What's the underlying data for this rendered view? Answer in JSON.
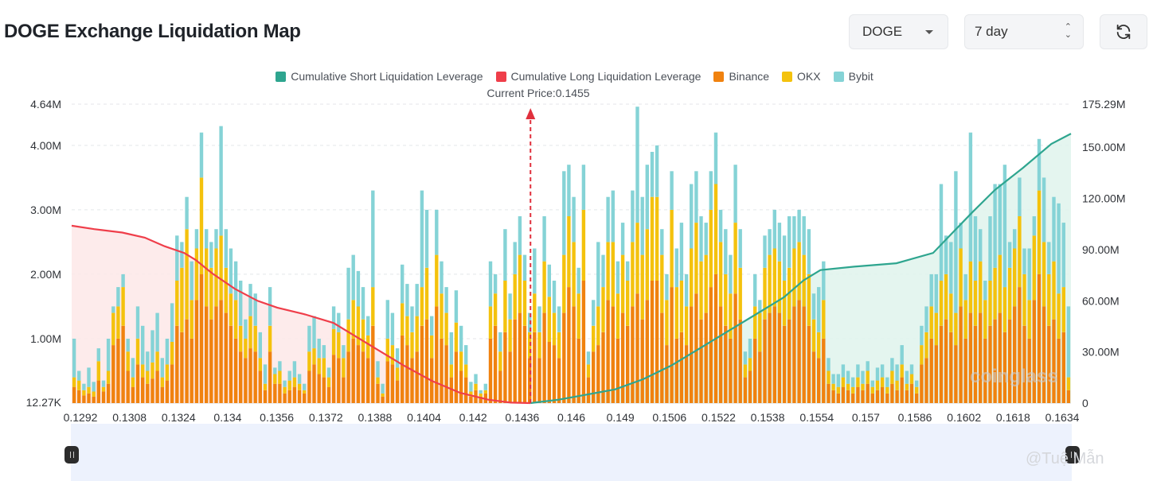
{
  "header": {
    "title": "DOGE Exchange Liquidation Map"
  },
  "controls": {
    "coin_value": "DOGE",
    "period_value": "7 day",
    "refresh_icon": "refresh-icon"
  },
  "colors": {
    "short_cum": "#2ea58f",
    "long_cum": "#ef3e4a",
    "binance": "#f0820f",
    "okx": "#f4c20d",
    "bybit": "#85d3d6"
  },
  "legend": [
    {
      "label": "Cumulative Short Liquidation Leverage",
      "color": "#2ea58f"
    },
    {
      "label": "Cumulative Long Liquidation Leverage",
      "color": "#ef3e4a"
    },
    {
      "label": "Binance",
      "color": "#f0820f"
    },
    {
      "label": "OKX",
      "color": "#f4c20d"
    },
    {
      "label": "Bybit",
      "color": "#85d3d6"
    }
  ],
  "current_price_label": "Current Price:0.1455",
  "watermarks": {
    "brand": "coinglass",
    "author": "@Tuệ Mẫn"
  },
  "chart_data": {
    "type": "bar",
    "stacked": true,
    "x_tick_labels": [
      "0.1292",
      "0.1308",
      "0.1324",
      "0.134",
      "0.1356",
      "0.1372",
      "0.1388",
      "0.1404",
      "0.142",
      "0.1436",
      "0.146",
      "0.149",
      "0.1506",
      "0.1522",
      "0.1538",
      "0.1554",
      "0.157",
      "0.1586",
      "0.1602",
      "0.1618",
      "0.1634"
    ],
    "x_range": [
      0.1292,
      0.1647
    ],
    "current_price": 0.1455,
    "left_axis": {
      "ticks": [
        "12.27K",
        "1.00M",
        "2.00M",
        "3.00M",
        "4.00M",
        "4.64M"
      ],
      "values": [
        12270,
        1000000,
        2000000,
        3000000,
        4000000,
        4640000
      ]
    },
    "right_axis": {
      "ticks": [
        "0",
        "30.00M",
        "60.00M",
        "90.00M",
        "120.00M",
        "150.00M",
        "175.29M"
      ],
      "values": [
        0,
        30000000,
        60000000,
        90000000,
        120000000,
        150000000,
        175290000
      ]
    },
    "series": [
      {
        "name": "Binance",
        "values": [
          250000,
          200000,
          120000,
          150000,
          100000,
          350000,
          180000,
          300000,
          900000,
          1000000,
          1200000,
          500000,
          250000,
          600000,
          400000,
          300000,
          380000,
          500000,
          250000,
          350000,
          600000,
          1200000,
          1100000,
          1300000,
          1000000,
          1600000,
          2000000,
          1500000,
          1300000,
          1500000,
          1600000,
          1400000,
          1200000,
          1000000,
          800000,
          700000,
          850000,
          800000,
          500000,
          200000,
          800000,
          300000,
          300000,
          150000,
          200000,
          250000,
          200000,
          150000,
          500000,
          600000,
          450000,
          400000,
          250000,
          750000,
          700000,
          400000,
          800000,
          1000000,
          900000,
          800000,
          700000,
          1200000,
          300000,
          100000,
          650000,
          600000,
          350000,
          1050000,
          900000,
          700000,
          800000,
          1200000,
          1300000,
          700000,
          1500000,
          1000000,
          900000,
          400000,
          800000,
          500000,
          400000,
          100000,
          200000,
          100000,
          150000,
          1000000,
          1200000,
          500000,
          1100000,
          800000,
          1300000,
          1400000,
          1200000,
          700000,
          1100000,
          700000,
          1400000,
          950000,
          900000,
          700000,
          1400000,
          1800000,
          1500000,
          1000000,
          1900000,
          400000,
          800000,
          900000,
          1100000,
          1600000,
          1500000,
          1000000,
          1400000,
          1200000,
          1500000,
          1700000,
          1300000,
          1600000,
          1900000,
          1900000,
          1400000,
          900000,
          1800000,
          1000000,
          1100000,
          900000,
          1500000,
          1700000,
          1300000,
          1400000,
          1800000,
          2000000,
          1500000,
          1200000,
          1000000,
          1700000,
          1300000,
          400000,
          500000,
          1000000,
          800000,
          1300000,
          1400000,
          1500000,
          1400000,
          1200000,
          1300000,
          1500000,
          1600000,
          1500000,
          1200000,
          800000,
          700000,
          1000000,
          300000,
          200000,
          150000,
          250000,
          200000,
          150000,
          250000,
          200000,
          300000,
          150000,
          200000,
          250000,
          150000,
          300000,
          200000,
          400000,
          200000,
          300000,
          150000,
          600000,
          700000,
          1000000,
          900000,
          1200000,
          1300000,
          1100000,
          900000,
          1500000,
          1000000,
          1400000,
          1200000,
          1400000,
          1000000,
          1200000,
          1300000,
          1400000,
          1100000,
          1300000,
          1500000,
          1800000,
          1200000,
          1000000,
          1600000,
          2000000,
          1500000,
          1200000,
          1300000,
          1000000,
          1100000,
          200000
        ]
      },
      {
        "name": "OKX",
        "values": [
          150000,
          150000,
          80000,
          100000,
          80000,
          300000,
          70000,
          200000,
          500000,
          500000,
          600000,
          300000,
          150000,
          400000,
          200000,
          200000,
          250000,
          300000,
          150000,
          250000,
          350000,
          700000,
          1000000,
          1400000,
          600000,
          800000,
          1500000,
          900000,
          800000,
          900000,
          1000000,
          700000,
          500000,
          600000,
          400000,
          300000,
          500000,
          400000,
          200000,
          100000,
          400000,
          150000,
          200000,
          100000,
          150000,
          150000,
          100000,
          50000,
          300000,
          250000,
          250000,
          300000,
          150000,
          400000,
          400000,
          300000,
          500000,
          600000,
          600000,
          500000,
          350000,
          600000,
          100000,
          50000,
          350000,
          300000,
          200000,
          500000,
          450000,
          400000,
          550000,
          600000,
          800000,
          350000,
          800000,
          700000,
          500000,
          200000,
          450000,
          300000,
          200000,
          80000,
          100000,
          50000,
          50000,
          500000,
          500000,
          300000,
          800000,
          500000,
          700000,
          900000,
          700000,
          400000,
          600000,
          400000,
          800000,
          700000,
          500000,
          400000,
          900000,
          1100000,
          1000000,
          700000,
          1100000,
          200000,
          400000,
          600000,
          700000,
          900000,
          1000000,
          700000,
          900000,
          700000,
          1000000,
          1100000,
          1000000,
          1100000,
          1300000,
          1300000,
          900000,
          700000,
          1200000,
          800000,
          800000,
          600000,
          900000,
          1100000,
          900000,
          900000,
          1200000,
          1400000,
          1000000,
          800000,
          700000,
          1100000,
          800000,
          200000,
          200000,
          500000,
          600000,
          800000,
          900000,
          900000,
          800000,
          700000,
          800000,
          900000,
          900000,
          800000,
          800000,
          500000,
          400000,
          600000,
          200000,
          100000,
          100000,
          150000,
          100000,
          100000,
          150000,
          100000,
          200000,
          100000,
          150000,
          150000,
          100000,
          200000,
          150000,
          200000,
          100000,
          150000,
          100000,
          300000,
          400000,
          500000,
          500000,
          700000,
          700000,
          600000,
          500000,
          900000,
          600000,
          800000,
          700000,
          800000,
          600000,
          700000,
          800000,
          900000,
          700000,
          800000,
          900000,
          1100000,
          800000,
          600000,
          1000000,
          1300000,
          1000000,
          800000,
          900000,
          700000,
          700000,
          200000
        ]
      },
      {
        "name": "Bybit",
        "values": [
          600000,
          150000,
          100000,
          300000,
          150000,
          200000,
          100000,
          500000,
          100000,
          300000,
          200000,
          200000,
          300000,
          500000,
          600000,
          300000,
          500000,
          600000,
          300000,
          400000,
          600000,
          700000,
          400000,
          500000,
          600000,
          300000,
          700000,
          300000,
          400000,
          300000,
          1700000,
          600000,
          700000,
          600000,
          700000,
          300000,
          500000,
          500000,
          400000,
          300000,
          600000,
          100000,
          150000,
          100000,
          150000,
          250000,
          150000,
          100000,
          400000,
          500000,
          300000,
          200000,
          150000,
          350000,
          300000,
          200000,
          800000,
          700000,
          550000,
          500000,
          300000,
          1500000,
          250000,
          150000,
          600000,
          500000,
          300000,
          600000,
          500000,
          400000,
          500000,
          1500000,
          900000,
          300000,
          700000,
          500000,
          400000,
          500000,
          500000,
          400000,
          300000,
          150000,
          150000,
          50000,
          100000,
          700000,
          300000,
          300000,
          800000,
          400000,
          500000,
          600000,
          400000,
          300000,
          700000,
          400000,
          700000,
          500000,
          500000,
          400000,
          1300000,
          800000,
          700000,
          400000,
          700000,
          200000,
          400000,
          1000000,
          500000,
          700000,
          800000,
          500000,
          500000,
          300000,
          800000,
          1800000,
          900000,
          1000000,
          700000,
          800000,
          400000,
          400000,
          600000,
          600000,
          900000,
          500000,
          1000000,
          800000,
          700000,
          500000,
          600000,
          800000,
          500000,
          700000,
          600000,
          900000,
          600000,
          200000,
          300000,
          500000,
          200000,
          500000,
          400000,
          600000,
          600000,
          700000,
          800000,
          500000,
          500000,
          600000,
          700000,
          400000,
          700000,
          600000,
          200000,
          150000,
          200000,
          200000,
          200000,
          150000,
          200000,
          200000,
          150000,
          100000,
          200000,
          200000,
          150000,
          200000,
          250000,
          300000,
          200000,
          150000,
          100000,
          300000,
          400000,
          500000,
          600000,
          1500000,
          600000,
          800000,
          2200000,
          400000,
          400000,
          2000000,
          1000000,
          500000,
          300000,
          1000000,
          1300000,
          1100000,
          1900000,
          400000,
          300000,
          600000,
          400000,
          800000,
          300000,
          800000,
          1000000,
          500000,
          1000000,
          1400000,
          1000000,
          1100000,
          1300000,
          1500000
        ]
      }
    ],
    "cumulative_long": {
      "name": "Cumulative Long Liquidation Leverage",
      "x": [
        0.1292,
        0.13,
        0.131,
        0.1318,
        0.1325,
        0.1332,
        0.1336,
        0.1342,
        0.135,
        0.1358,
        0.1365,
        0.1375,
        0.1385,
        0.1392,
        0.14,
        0.141,
        0.142,
        0.143,
        0.144,
        0.1448,
        0.1455
      ],
      "y": [
        104000000,
        102000000,
        100000000,
        97000000,
        92000000,
        88000000,
        84000000,
        76000000,
        67000000,
        60000000,
        56000000,
        52000000,
        47000000,
        40000000,
        32000000,
        22000000,
        13000000,
        6000000,
        2000000,
        300000,
        0
      ]
    },
    "cumulative_short": {
      "name": "Cumulative Short Liquidation Leverage",
      "x": [
        0.1455,
        0.1465,
        0.1475,
        0.1485,
        0.1495,
        0.1505,
        0.1515,
        0.1525,
        0.1535,
        0.1545,
        0.1552,
        0.1558,
        0.157,
        0.1585,
        0.1598,
        0.1605,
        0.1612,
        0.162,
        0.163,
        0.164,
        0.1647
      ],
      "y": [
        0,
        2000000,
        5000000,
        8000000,
        14000000,
        22000000,
        32000000,
        42000000,
        52000000,
        62000000,
        72000000,
        78000000,
        80000000,
        82000000,
        88000000,
        100000000,
        112000000,
        125000000,
        138000000,
        152000000,
        158000000
      ]
    }
  }
}
